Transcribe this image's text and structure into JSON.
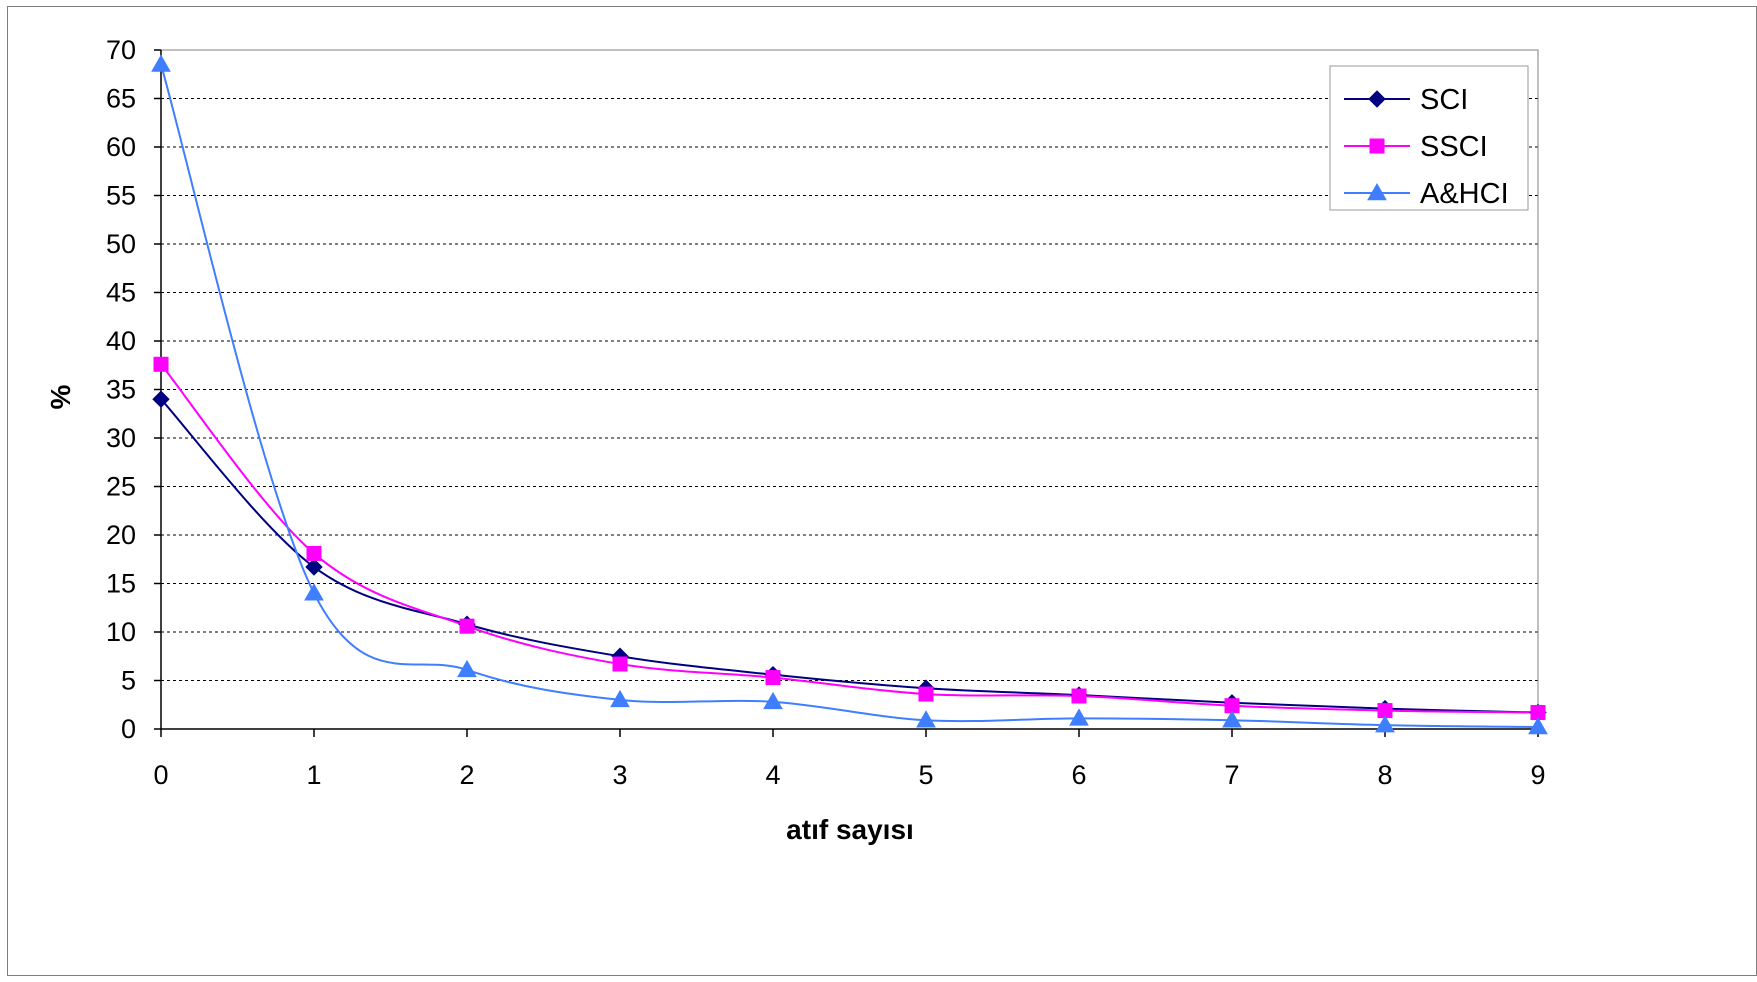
{
  "chart_data": {
    "type": "line",
    "title": "",
    "xlabel": "atıf sayısı",
    "ylabel": "%",
    "x": [
      0,
      1,
      2,
      3,
      4,
      5,
      6,
      7,
      8,
      9
    ],
    "xlim": [
      0,
      9
    ],
    "ylim": [
      0,
      70
    ],
    "y_ticks": [
      0,
      5,
      10,
      15,
      20,
      25,
      30,
      35,
      40,
      45,
      50,
      55,
      60,
      65,
      70
    ],
    "grid": true,
    "legend_position": "top-right",
    "smooth": true,
    "series": [
      {
        "name": "SCI",
        "color": "#000080",
        "marker": "diamond",
        "values": [
          34.0,
          16.7,
          10.8,
          7.5,
          5.6,
          4.2,
          3.5,
          2.7,
          2.1,
          1.7
        ]
      },
      {
        "name": "SSCI",
        "color": "#ff00ff",
        "marker": "square",
        "values": [
          37.6,
          18.1,
          10.6,
          6.7,
          5.3,
          3.6,
          3.4,
          2.4,
          1.9,
          1.7
        ]
      },
      {
        "name": "A&HCI",
        "color": "#3f7fff",
        "marker": "triangle",
        "values": [
          68.5,
          14.0,
          6.1,
          3.0,
          2.8,
          0.9,
          1.1,
          0.9,
          0.4,
          0.2
        ]
      }
    ]
  }
}
